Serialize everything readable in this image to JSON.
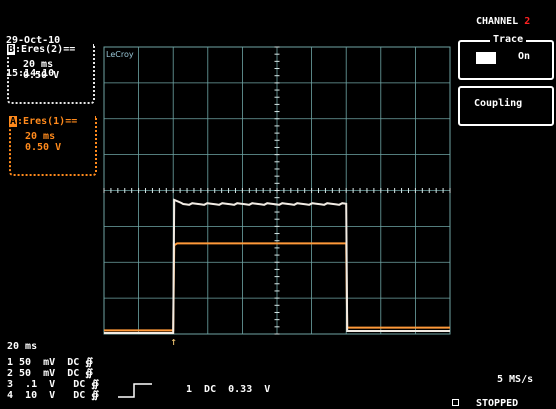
{
  "header": {
    "date": "29-Oct-10",
    "time": "15:14:10"
  },
  "traces": [
    {
      "letter": "B",
      "label": ":Eres(2)==",
      "timebase": "20 ms",
      "volts": "0.50 V",
      "color": "#e8e8e8"
    },
    {
      "letter": "A",
      "label": ":Eres(1)==",
      "timebase": "20 ms",
      "volts": "0.50 V",
      "color": "#ff8a1c"
    }
  ],
  "grid": {
    "brand": "LeCroy",
    "divisions_x": 10,
    "divisions_y": 8,
    "color": "#6fa5a5"
  },
  "waveforms": {
    "white": {
      "color": "#f2ece4",
      "baseline_div": 0,
      "high_div": 3.6,
      "rise_div": 2.0,
      "fall_div": 7.0
    },
    "orange": {
      "color": "#ff9a3a",
      "baseline_div": 0.1,
      "high_div": 2.5,
      "rise_div": 2.0,
      "fall_div": 7.0
    }
  },
  "trigger": {
    "marker": "↑",
    "position_div": 2.0
  },
  "menu": {
    "channel_label": "CHANNEL",
    "channel_number": "2",
    "trace": {
      "caption": "Trace",
      "value": "On"
    },
    "coupling": {
      "label": "Coupling"
    }
  },
  "bottom": {
    "timebase": "20 ms",
    "channels": [
      "1 50  mV  DC ∯",
      "2 50  mV  DC ∯",
      "3  .1  V   DC ∯",
      "4  10  V   DC ∯"
    ],
    "trigger_info": "1  DC  0.33  V",
    "sample_rate": "5 MS/s",
    "status": "STOPPED"
  }
}
